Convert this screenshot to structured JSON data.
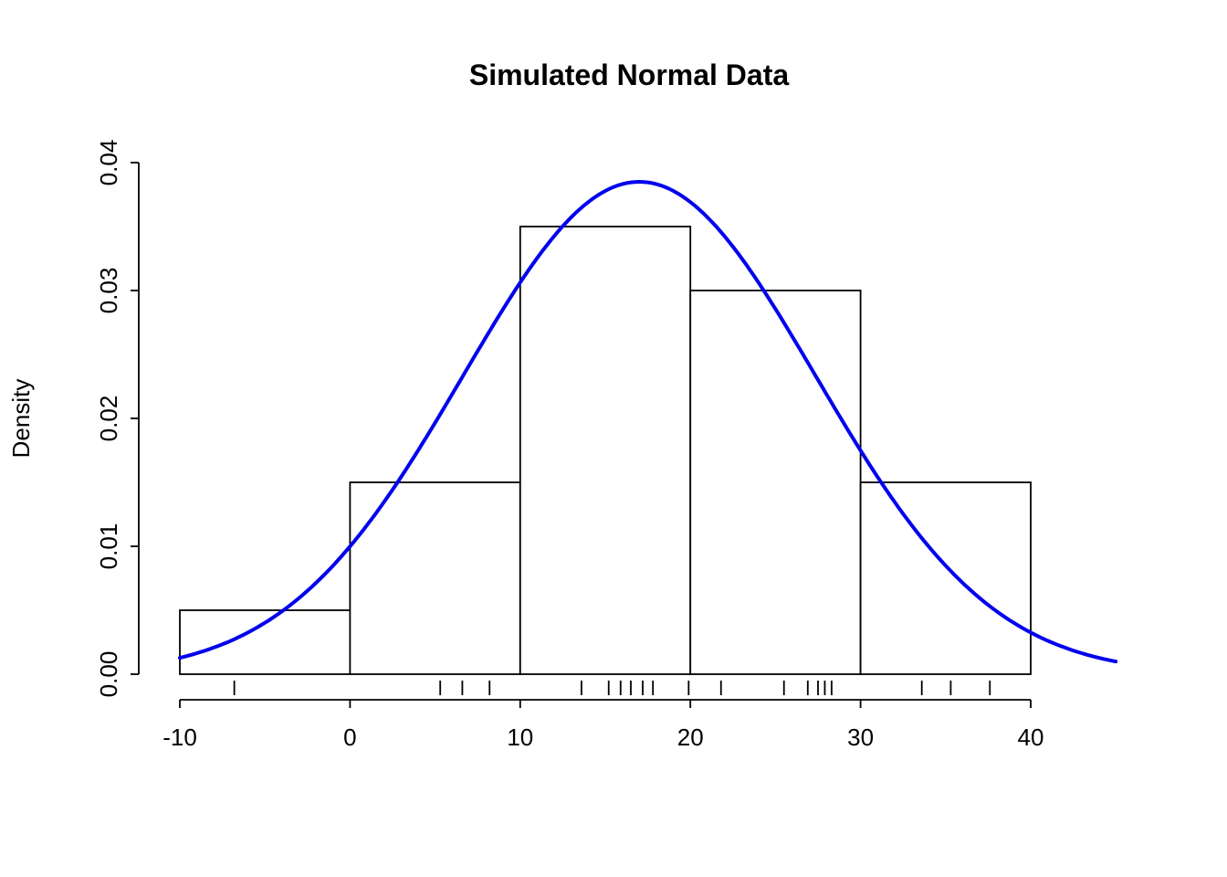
{
  "chart_data": {
    "type": "bar",
    "subtype": "histogram-with-density-curve-and-rug",
    "title": "Simulated Normal Data",
    "xlabel": "",
    "ylabel": "Density",
    "xlim": [
      -10,
      45
    ],
    "ylim": [
      0,
      0.04
    ],
    "grid": "off",
    "bar_fill": "#ffffff",
    "bar_stroke": "#000000",
    "bins": [
      {
        "from": -10,
        "to": 0,
        "density": 0.005
      },
      {
        "from": 0,
        "to": 10,
        "density": 0.015
      },
      {
        "from": 10,
        "to": 20,
        "density": 0.035
      },
      {
        "from": 20,
        "to": 30,
        "density": 0.03
      },
      {
        "from": 30,
        "to": 40,
        "density": 0.015
      }
    ],
    "x_ticks": [
      {
        "value": -10,
        "label": "-10"
      },
      {
        "value": 0,
        "label": "0"
      },
      {
        "value": 10,
        "label": "10"
      },
      {
        "value": 20,
        "label": "20"
      },
      {
        "value": 30,
        "label": "30"
      },
      {
        "value": 40,
        "label": "40"
      }
    ],
    "y_ticks": [
      {
        "value": 0.0,
        "label": "0.00"
      },
      {
        "value": 0.01,
        "label": "0.01"
      },
      {
        "value": 0.02,
        "label": "0.02"
      },
      {
        "value": 0.03,
        "label": "0.03"
      },
      {
        "value": 0.04,
        "label": "0.04"
      }
    ],
    "density_curve": {
      "color": "#0000EE",
      "mean": 17,
      "sd": 10.35,
      "peak": 0.0385,
      "x_range": [
        -10,
        45.2
      ]
    },
    "rug_points": [
      -6.8,
      5.3,
      6.6,
      8.2,
      13.6,
      15.2,
      15.9,
      16.5,
      17.2,
      17.8,
      19.9,
      21.8,
      25.5,
      26.9,
      27.5,
      27.9,
      28.3,
      33.6,
      35.3,
      37.6
    ]
  }
}
